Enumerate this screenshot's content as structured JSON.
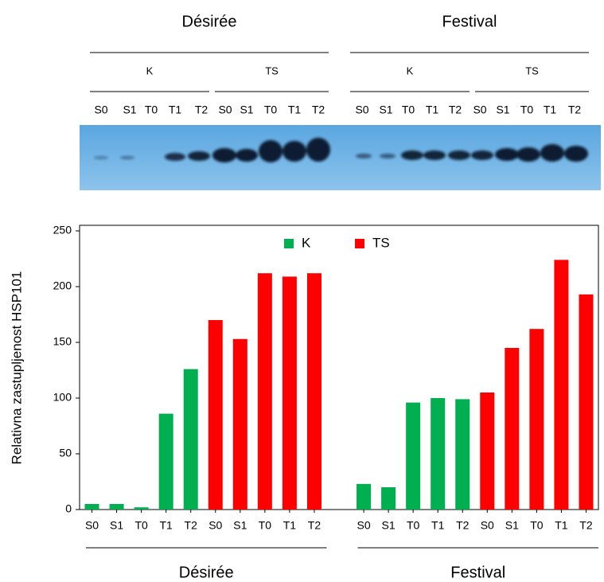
{
  "blot": {
    "groups": [
      "Désirée",
      "Festival"
    ],
    "subgroups": [
      "K",
      "TS",
      "K",
      "TS"
    ],
    "lanes": [
      "S0",
      "S1",
      "T0",
      "T1",
      "T2",
      "S0",
      "S1",
      "T0",
      "T1",
      "T2",
      "S0",
      "S1",
      "T0",
      "T1",
      "T2",
      "S0",
      "S1",
      "T0",
      "T1",
      "T2"
    ]
  },
  "chart_data": {
    "type": "bar",
    "y_label": "Relativna zastupljenost HSP101",
    "categories": [
      "S0",
      "S1",
      "T0",
      "T1",
      "T2",
      "S0",
      "S1",
      "T0",
      "T1",
      "T2",
      null,
      "S0",
      "S1",
      "T0",
      "T1",
      "T2",
      "S0",
      "S1",
      "T0",
      "T1",
      "T2"
    ],
    "group_labels": [
      "Désirée",
      "Festival"
    ],
    "series": [
      {
        "name": "K",
        "color": "#00b050",
        "values": [
          5,
          5,
          2,
          86,
          126,
          null,
          null,
          null,
          null,
          null,
          null,
          23,
          20,
          96,
          100,
          99,
          null,
          null,
          null,
          null,
          null
        ]
      },
      {
        "name": "TS",
        "color": "#ff0000",
        "values": [
          null,
          null,
          null,
          null,
          null,
          170,
          153,
          212,
          209,
          212,
          null,
          null,
          null,
          null,
          null,
          null,
          105,
          145,
          162,
          224,
          193
        ]
      }
    ],
    "ylim": [
      0,
      255
    ],
    "yticks": [
      0,
      50,
      100,
      150,
      200,
      250
    ],
    "legend": "top"
  }
}
